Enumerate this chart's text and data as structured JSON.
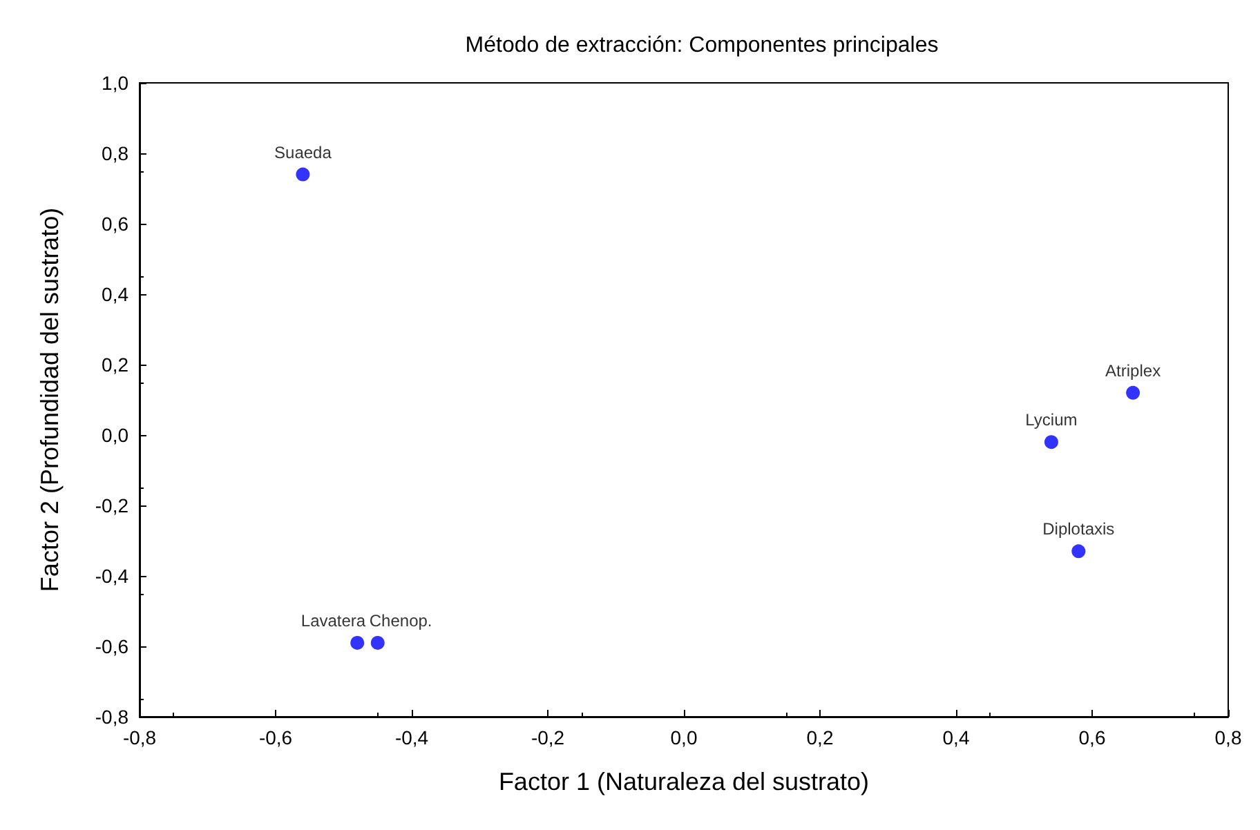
{
  "chart_data": {
    "type": "scatter",
    "title": "Método de extracción: Componentes principales",
    "xlabel": "Factor 1 (Naturaleza del sustrato)",
    "ylabel": "Factor 2 (Profundidad del sustrato)",
    "x": [
      -0.56,
      0.66,
      0.54,
      0.58,
      -0.48,
      -0.45
    ],
    "series": [
      {
        "color": "#0000ff",
        "values": [
          0.74,
          0.12,
          -0.02,
          -0.33,
          -0.59,
          -0.59
        ]
      }
    ],
    "marker": "circle",
    "grid": false,
    "xlim": [
      -0.8,
      0.8
    ],
    "ylim": [
      -0.8,
      1.0
    ],
    "xticks": [
      {
        "value": -0.8,
        "label": "-0,8"
      },
      {
        "value": -0.6,
        "label": "-0,6"
      },
      {
        "value": -0.4,
        "label": "-0,4"
      },
      {
        "value": -0.2,
        "label": "-0,2"
      },
      {
        "value": 0,
        "label": "0,0"
      },
      {
        "value": 0.2,
        "label": "0,2"
      },
      {
        "value": 0.4,
        "label": "0,4"
      },
      {
        "value": 0.6,
        "label": "0,6"
      },
      {
        "value": 0.8,
        "label": "0,8"
      }
    ],
    "yticks": [
      {
        "value": -0.8,
        "label": "-0,8"
      },
      {
        "value": -0.6,
        "label": "-0,6"
      },
      {
        "value": -0.4,
        "label": "-0,4"
      },
      {
        "value": -0.2,
        "label": "-0,2"
      },
      {
        "value": 0,
        "label": "0,0"
      },
      {
        "value": 0.2,
        "label": "0,2"
      },
      {
        "value": 0.4,
        "label": "0,4"
      },
      {
        "value": 0.6,
        "label": "0,6"
      },
      {
        "value": 0.8,
        "label": "0,8"
      },
      {
        "value": 1.0,
        "label": "1,0"
      }
    ],
    "annotations": [
      {
        "text": "Suaeda",
        "x": -0.56,
        "y": 0.74
      },
      {
        "text": "Atriplex",
        "x": 0.66,
        "y": 0.12
      },
      {
        "text": "Lycium",
        "x": 0.54,
        "y": -0.02
      },
      {
        "text": "Diplotaxis",
        "x": 0.58,
        "y": -0.33
      },
      {
        "text": "Lavatera",
        "x": -0.48,
        "y": -0.59
      },
      {
        "text": "Chenop.",
        "x": -0.45,
        "y": -0.59
      }
    ]
  }
}
